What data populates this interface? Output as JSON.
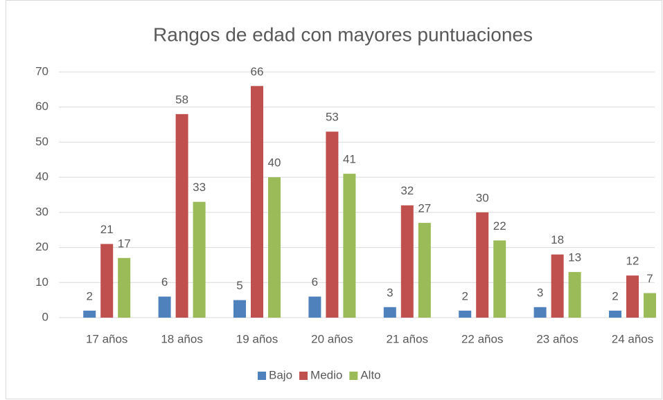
{
  "chart_data": {
    "type": "bar",
    "title": "Rangos de edad con mayores puntuaciones",
    "categories": [
      "17 años",
      "18 años",
      "19 años",
      "20 años",
      "21 años",
      "22 años",
      "23 años",
      "24 años"
    ],
    "series": [
      {
        "name": "Bajo",
        "color": "#4f81bd",
        "values": [
          2,
          6,
          5,
          6,
          3,
          2,
          3,
          2
        ]
      },
      {
        "name": "Medio",
        "color": "#c0504d",
        "values": [
          21,
          58,
          66,
          53,
          32,
          30,
          18,
          12
        ]
      },
      {
        "name": "Alto",
        "color": "#9bbb59",
        "values": [
          17,
          33,
          40,
          41,
          27,
          22,
          13,
          7
        ]
      }
    ],
    "ylim": [
      0,
      70
    ],
    "yticks": [
      0,
      10,
      20,
      30,
      40,
      50,
      60,
      70
    ],
    "grid": true,
    "legend": "bottom"
  }
}
